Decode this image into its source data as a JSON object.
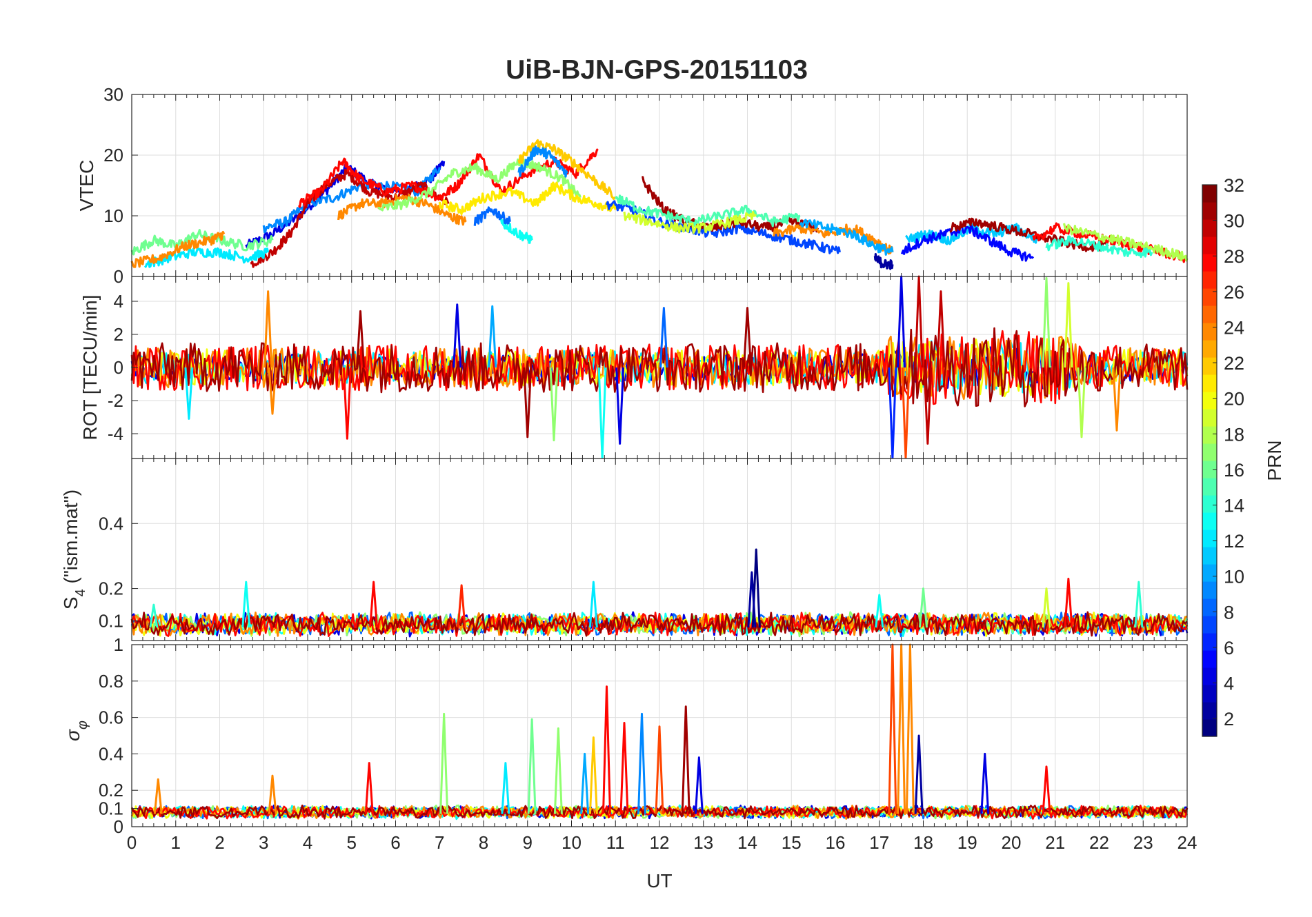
{
  "figure": {
    "title": "UiB-BJN-GPS-20151103"
  },
  "chart_data": [
    {
      "type": "line",
      "panel": "vtec",
      "ylabel": "VTEC",
      "ylim": [
        0,
        30
      ],
      "yticks": [
        0,
        10,
        20,
        30
      ],
      "xlim": [
        0,
        24
      ],
      "grid": true,
      "series": [
        {
          "prn": 4,
          "x": [
            2.6,
            3.2,
            3.8,
            4.4,
            4.9,
            5.5,
            6.2,
            6.8,
            7.1
          ],
          "y": [
            5,
            7,
            10,
            14,
            18,
            15,
            14,
            16,
            19
          ]
        },
        {
          "prn": 9,
          "x": [
            3.0,
            3.5,
            4.0,
            4.6,
            5.2,
            5.8,
            6.5,
            7.0
          ],
          "y": [
            8,
            9,
            12,
            13,
            15,
            15,
            14,
            18
          ]
        },
        {
          "prn": 30,
          "x": [
            2.7,
            3.2,
            3.6,
            4.0,
            4.4,
            4.9,
            5.4,
            6.0,
            6.6,
            7.2
          ],
          "y": [
            2,
            4,
            7,
            12,
            15,
            17,
            14,
            13,
            15,
            12
          ]
        },
        {
          "prn": 28,
          "x": [
            3.8,
            4.3,
            4.8,
            5.2,
            5.8,
            6.4,
            7.0,
            7.4,
            7.9,
            8.4,
            9.0,
            9.6,
            10.1,
            10.6
          ],
          "y": [
            12,
            14,
            19,
            16,
            14,
            15,
            13,
            15,
            20,
            14,
            17,
            19,
            17,
            21
          ]
        },
        {
          "prn": 24,
          "x": [
            4.7,
            5.2,
            5.7,
            6.2,
            6.7,
            7.2,
            7.6
          ],
          "y": [
            10,
            12,
            12,
            13,
            12,
            10,
            9
          ]
        },
        {
          "prn": 16,
          "x": [
            0.0,
            0.5,
            1.0,
            1.5,
            2.0,
            2.6,
            3.2
          ],
          "y": [
            4,
            6,
            5,
            7,
            6,
            5,
            6
          ]
        },
        {
          "prn": 12,
          "x": [
            0.3,
            0.8,
            1.4,
            2.0,
            2.6,
            3.1
          ],
          "y": [
            2,
            3,
            4,
            4,
            3,
            4
          ]
        },
        {
          "prn": 24,
          "x": [
            0.0,
            0.6,
            1.2,
            1.8,
            2.1
          ],
          "y": [
            2,
            3,
            5,
            6,
            7
          ]
        },
        {
          "prn": 17,
          "x": [
            5.6,
            6.2,
            6.8,
            7.3,
            7.8,
            8.3,
            8.8,
            9.3,
            9.8,
            10.2
          ],
          "y": [
            11,
            12,
            14,
            17,
            18,
            16,
            19,
            18,
            16,
            13
          ]
        },
        {
          "prn": 21,
          "x": [
            7.0,
            7.5,
            8.0,
            8.6,
            9.2,
            9.6,
            10.1,
            10.6,
            11.0
          ],
          "y": [
            12,
            11,
            13,
            14,
            12,
            15,
            13,
            12,
            11
          ]
        },
        {
          "prn": 22,
          "x": [
            8.8,
            9.2,
            9.6,
            10.0,
            10.5,
            11.0
          ],
          "y": [
            19,
            22,
            21,
            19,
            16,
            13
          ]
        },
        {
          "prn": 9,
          "x": [
            8.8,
            9.2,
            9.5,
            9.9
          ],
          "y": [
            17,
            21,
            20,
            17
          ]
        },
        {
          "prn": 13,
          "x": [
            8.4,
            8.8,
            9.1
          ],
          "y": [
            9,
            7,
            6
          ]
        },
        {
          "prn": 8,
          "x": [
            7.8,
            8.2,
            8.6
          ],
          "y": [
            9,
            11,
            9
          ]
        },
        {
          "prn": 7,
          "x": [
            10.8,
            11.4,
            12.0,
            12.6,
            13.2,
            13.8,
            14.4,
            15.0,
            15.6,
            16.1
          ],
          "y": [
            12,
            11,
            9,
            8,
            7,
            8,
            7,
            6,
            5,
            4
          ]
        },
        {
          "prn": 31,
          "x": [
            11.6,
            12.1,
            12.6,
            13.2,
            13.8,
            14.4,
            15.0,
            15.6
          ],
          "y": [
            16,
            11,
            9,
            8,
            9,
            8,
            9,
            8
          ]
        },
        {
          "prn": 15,
          "x": [
            11.0,
            11.6,
            12.2,
            12.8,
            13.4,
            14.0,
            14.6,
            15.2
          ],
          "y": [
            13,
            11,
            10,
            9,
            10,
            11,
            9,
            10
          ]
        },
        {
          "prn": 19,
          "x": [
            11.2,
            11.8,
            12.4,
            13.0,
            13.6,
            14.2
          ],
          "y": [
            10,
            9,
            8,
            8,
            9,
            10
          ]
        },
        {
          "prn": 24,
          "x": [
            14.6,
            15.2,
            15.8,
            16.4,
            16.9,
            17.3
          ],
          "y": [
            7,
            8,
            7,
            8,
            6,
            4
          ]
        },
        {
          "prn": 10,
          "x": [
            15.2,
            15.8,
            16.4,
            16.9,
            17.3
          ],
          "y": [
            9,
            8,
            7,
            5,
            4
          ]
        },
        {
          "prn": 2,
          "x": [
            16.9,
            17.1,
            17.3
          ],
          "y": [
            3,
            2,
            2
          ]
        },
        {
          "prn": 11,
          "x": [
            17.6,
            18.1,
            18.6,
            19.1,
            19.6,
            20.1,
            20.6
          ],
          "y": [
            6,
            7,
            6,
            8,
            7,
            8,
            6
          ]
        },
        {
          "prn": 5,
          "x": [
            17.5,
            18.0,
            18.5,
            19.0,
            19.5,
            20.0,
            20.5
          ],
          "y": [
            4,
            6,
            7,
            8,
            6,
            4,
            3
          ]
        },
        {
          "prn": 31,
          "x": [
            18.6,
            19.2,
            19.8,
            20.4,
            21.0,
            21.6,
            22.2
          ],
          "y": [
            8,
            9,
            8,
            7,
            6,
            5,
            5
          ]
        },
        {
          "prn": 28,
          "x": [
            20.5,
            21.0,
            21.6,
            22.2,
            22.8,
            23.4,
            24.0
          ],
          "y": [
            6,
            8,
            7,
            6,
            5,
            4,
            3
          ]
        },
        {
          "prn": 18,
          "x": [
            21.2,
            21.8,
            22.4,
            23.0,
            23.6,
            24.0
          ],
          "y": [
            8,
            7,
            6,
            5,
            4,
            3
          ]
        },
        {
          "prn": 14,
          "x": [
            20.8,
            21.4,
            22.0,
            22.6,
            23.2
          ],
          "y": [
            5,
            6,
            5,
            4,
            4
          ]
        }
      ]
    },
    {
      "type": "line",
      "panel": "rot",
      "ylabel": "ROT [TECU/min]",
      "ylim": [
        -5.5,
        5.5
      ],
      "yticks": [
        -4,
        -2,
        0,
        2,
        4
      ],
      "xlim": [
        0,
        24
      ],
      "grid": true,
      "series": [
        {
          "prn": 4,
          "x": [
            0,
            24
          ],
          "y": [
            0,
            0
          ],
          "noise_amplitude": 0.8
        },
        {
          "prn": 12,
          "x": [
            0,
            24
          ],
          "y": [
            0,
            0
          ],
          "noise_amplitude": 1.0
        },
        {
          "prn": 20,
          "x": [
            0,
            24
          ],
          "y": [
            0,
            0
          ],
          "noise_amplitude": 1.1
        },
        {
          "prn": 24,
          "x": [
            0,
            24
          ],
          "y": [
            0,
            0
          ],
          "noise_amplitude": 1.2
        },
        {
          "prn": 28,
          "x": [
            0,
            24
          ],
          "y": [
            0,
            0
          ],
          "noise_amplitude": 1.4
        },
        {
          "prn": 31,
          "x": [
            0,
            24
          ],
          "y": [
            0,
            0
          ],
          "noise_amplitude": 1.5
        }
      ],
      "spikes": [
        {
          "x": 1.3,
          "y": -3.1,
          "prn": 12
        },
        {
          "x": 3.1,
          "y": 4.6,
          "prn": 24
        },
        {
          "x": 3.2,
          "y": -2.8,
          "prn": 24
        },
        {
          "x": 4.9,
          "y": -4.3,
          "prn": 28
        },
        {
          "x": 5.2,
          "y": 3.4,
          "prn": 31
        },
        {
          "x": 7.4,
          "y": 3.8,
          "prn": 4
        },
        {
          "x": 8.2,
          "y": 3.7,
          "prn": 10
        },
        {
          "x": 9.0,
          "y": -4.2,
          "prn": 31
        },
        {
          "x": 9.6,
          "y": -4.4,
          "prn": 17
        },
        {
          "x": 10.7,
          "y": -5.5,
          "prn": 13
        },
        {
          "x": 11.1,
          "y": -4.6,
          "prn": 4
        },
        {
          "x": 12.1,
          "y": 3.6,
          "prn": 8
        },
        {
          "x": 14.0,
          "y": 3.6,
          "prn": 31
        },
        {
          "x": 17.3,
          "y": -5.5,
          "prn": 6
        },
        {
          "x": 17.5,
          "y": 5.5,
          "prn": 4
        },
        {
          "x": 17.6,
          "y": -5.5,
          "prn": 26
        },
        {
          "x": 17.9,
          "y": 5.5,
          "prn": 30
        },
        {
          "x": 18.1,
          "y": -4.6,
          "prn": 30
        },
        {
          "x": 18.4,
          "y": 4.6,
          "prn": 30
        },
        {
          "x": 20.8,
          "y": 5.4,
          "prn": 17
        },
        {
          "x": 21.3,
          "y": 5.1,
          "prn": 19
        },
        {
          "x": 21.6,
          "y": -4.2,
          "prn": 18
        },
        {
          "x": 22.4,
          "y": -3.8,
          "prn": 24
        }
      ]
    },
    {
      "type": "line",
      "panel": "s4",
      "ylabel": "S",
      "ylabel_subscript": "4",
      "ylabel_suffix": " (\"ism.mat\")",
      "ylim": [
        0.04,
        0.6
      ],
      "yticks": [
        0.1,
        0.2,
        0.4
      ],
      "xlim": [
        0,
        24
      ],
      "grid": true,
      "baseline": 0.08,
      "noise_amplitude": 0.04,
      "spikes": [
        {
          "x": 0.5,
          "y": 0.15,
          "prn": 14
        },
        {
          "x": 2.6,
          "y": 0.22,
          "prn": 13
        },
        {
          "x": 5.5,
          "y": 0.22,
          "prn": 28
        },
        {
          "x": 7.5,
          "y": 0.21,
          "prn": 27
        },
        {
          "x": 10.5,
          "y": 0.22,
          "prn": 12
        },
        {
          "x": 14.2,
          "y": 0.32,
          "prn": 1
        },
        {
          "x": 14.1,
          "y": 0.25,
          "prn": 2
        },
        {
          "x": 17.0,
          "y": 0.18,
          "prn": 13
        },
        {
          "x": 18.0,
          "y": 0.2,
          "prn": 16
        },
        {
          "x": 20.8,
          "y": 0.2,
          "prn": 19
        },
        {
          "x": 21.3,
          "y": 0.23,
          "prn": 28
        },
        {
          "x": 22.9,
          "y": 0.22,
          "prn": 14
        }
      ]
    },
    {
      "type": "line",
      "panel": "sigma_phi",
      "ylabel": "σ",
      "ylabel_subscript": "φ",
      "xlabel": "UT",
      "ylim": [
        0,
        1
      ],
      "yticks": [
        0,
        0.1,
        0.2,
        0.4,
        0.6,
        0.8,
        1
      ],
      "ytick_labels": [
        "0",
        "0.1",
        "0.2",
        "0.4",
        "0.6",
        "0.8",
        "1"
      ],
      "xlim": [
        0,
        24
      ],
      "xticks": [
        "0",
        "1",
        "2",
        "3",
        "4",
        "5",
        "6",
        "7",
        "8",
        "9",
        "10",
        "11",
        "12",
        "13",
        "14",
        "15",
        "16",
        "17",
        "18",
        "19",
        "20",
        "21",
        "22",
        "23",
        "24"
      ],
      "grid": true,
      "baseline": 0.07,
      "noise_amplitude": 0.04,
      "spikes": [
        {
          "x": 0.6,
          "y": 0.26,
          "prn": 24
        },
        {
          "x": 3.2,
          "y": 0.28,
          "prn": 24
        },
        {
          "x": 5.4,
          "y": 0.35,
          "prn": 28
        },
        {
          "x": 7.1,
          "y": 0.62,
          "prn": 17
        },
        {
          "x": 8.5,
          "y": 0.35,
          "prn": 12
        },
        {
          "x": 9.1,
          "y": 0.59,
          "prn": 16
        },
        {
          "x": 9.7,
          "y": 0.54,
          "prn": 17
        },
        {
          "x": 10.3,
          "y": 0.4,
          "prn": 10
        },
        {
          "x": 10.5,
          "y": 0.49,
          "prn": 22
        },
        {
          "x": 10.8,
          "y": 0.77,
          "prn": 28
        },
        {
          "x": 11.2,
          "y": 0.57,
          "prn": 28
        },
        {
          "x": 11.6,
          "y": 0.62,
          "prn": 9
        },
        {
          "x": 12.0,
          "y": 0.55,
          "prn": 26
        },
        {
          "x": 12.6,
          "y": 0.66,
          "prn": 31
        },
        {
          "x": 12.9,
          "y": 0.38,
          "prn": 4
        },
        {
          "x": 17.3,
          "y": 1.0,
          "prn": 26
        },
        {
          "x": 17.5,
          "y": 1.0,
          "prn": 24
        },
        {
          "x": 17.7,
          "y": 1.0,
          "prn": 24
        },
        {
          "x": 17.9,
          "y": 0.5,
          "prn": 2
        },
        {
          "x": 19.4,
          "y": 0.4,
          "prn": 4
        },
        {
          "x": 20.8,
          "y": 0.33,
          "prn": 28
        }
      ]
    }
  ],
  "colorbar": {
    "label": "PRN",
    "ticks": [
      "2",
      "4",
      "6",
      "8",
      "10",
      "12",
      "14",
      "16",
      "18",
      "20",
      "22",
      "24",
      "26",
      "28",
      "30",
      "32"
    ],
    "range": [
      1,
      32
    ],
    "colormap": "jet"
  }
}
